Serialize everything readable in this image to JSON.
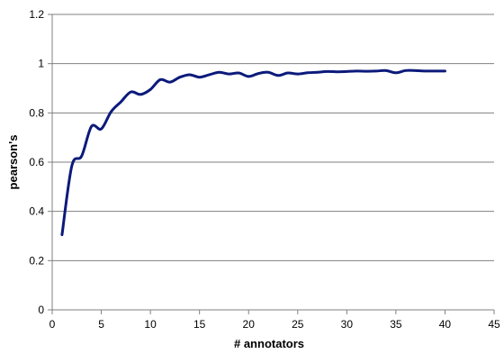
{
  "chart_data": {
    "type": "line",
    "title": "",
    "xlabel": "# annotators",
    "ylabel": "pearson's",
    "xlim": [
      0,
      45
    ],
    "ylim": [
      0,
      1.2
    ],
    "xticks": [
      "0",
      "5",
      "10",
      "15",
      "20",
      "25",
      "30",
      "35",
      "40",
      "45"
    ],
    "yticks": [
      "0",
      "0.2",
      "0.4",
      "0.6",
      "0.8",
      "1",
      "1.2"
    ],
    "grid": "horizontal",
    "legend": "none",
    "series": [
      {
        "color": "#0b1a7a",
        "x": [
          1,
          2,
          3,
          4,
          5,
          6,
          7,
          8,
          9,
          10,
          11,
          12,
          13,
          14,
          15,
          16,
          17,
          18,
          19,
          20,
          21,
          22,
          23,
          24,
          25,
          26,
          27,
          28,
          29,
          30,
          31,
          32,
          33,
          34,
          35,
          36,
          37,
          38,
          39,
          40
        ],
        "y": [
          0.305,
          0.585,
          0.625,
          0.745,
          0.735,
          0.805,
          0.845,
          0.885,
          0.875,
          0.895,
          0.935,
          0.925,
          0.945,
          0.955,
          0.945,
          0.955,
          0.965,
          0.958,
          0.962,
          0.948,
          0.96,
          0.965,
          0.952,
          0.962,
          0.958,
          0.963,
          0.965,
          0.968,
          0.967,
          0.968,
          0.97,
          0.969,
          0.97,
          0.972,
          0.963,
          0.972,
          0.972,
          0.97,
          0.97,
          0.97
        ]
      }
    ]
  }
}
